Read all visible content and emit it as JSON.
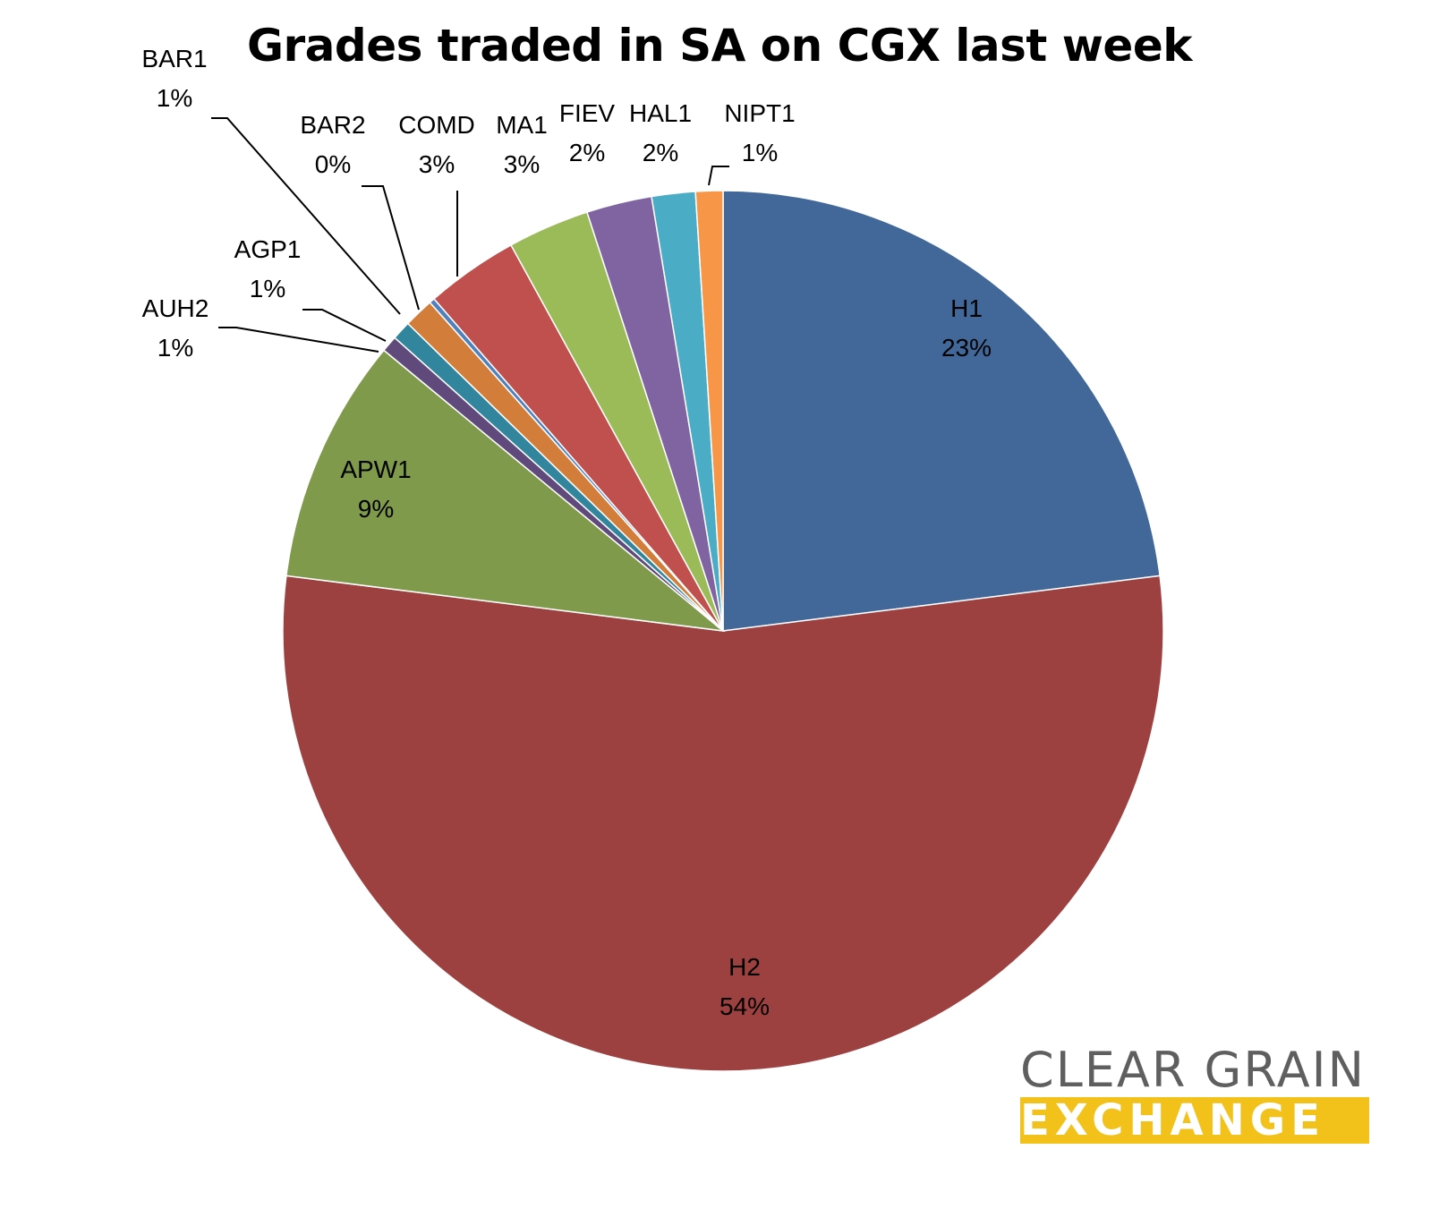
{
  "chart_data": {
    "type": "pie",
    "title": "Grades traded in SA on CGX last week",
    "start": "12 o'clock",
    "direction": "clockwise",
    "slices": [
      {
        "name": "H1",
        "label": "23%",
        "value": 23.0,
        "color": "#416899"
      },
      {
        "name": "H2",
        "label": "54%",
        "value": 54.0,
        "color": "#9d4040"
      },
      {
        "name": "APW1",
        "label": "9%",
        "value": 9.0,
        "color": "#7f9a4a"
      },
      {
        "name": "AUH2",
        "label": "1%",
        "value": 0.6,
        "color": "#604a7b"
      },
      {
        "name": "AGP1",
        "label": "1%",
        "value": 0.7,
        "color": "#31859c"
      },
      {
        "name": "BAR1",
        "label": "1%",
        "value": 1.1,
        "color": "#d27e3a"
      },
      {
        "name": "BAR2",
        "label": "0%",
        "value": 0.2,
        "color": "#4f81bd"
      },
      {
        "name": "COMD",
        "label": "3%",
        "value": 3.4,
        "color": "#c0504d"
      },
      {
        "name": "MA1",
        "label": "3%",
        "value": 3.0,
        "color": "#9bbb59"
      },
      {
        "name": "FIEV",
        "label": "2%",
        "value": 2.4,
        "color": "#8064a2"
      },
      {
        "name": "HAL1",
        "label": "2%",
        "value": 1.6,
        "color": "#4bacc6"
      },
      {
        "name": "NIPT1",
        "label": "1%",
        "value": 1.0,
        "color": "#f79646"
      }
    ]
  },
  "logo": {
    "line1": "CLEAR GRAIN",
    "line2": "EXCHANGE",
    "colors": {
      "line1": "#5f5f5f",
      "line2_bg": "#f2c21b",
      "line2_text": "#ffffff"
    }
  }
}
